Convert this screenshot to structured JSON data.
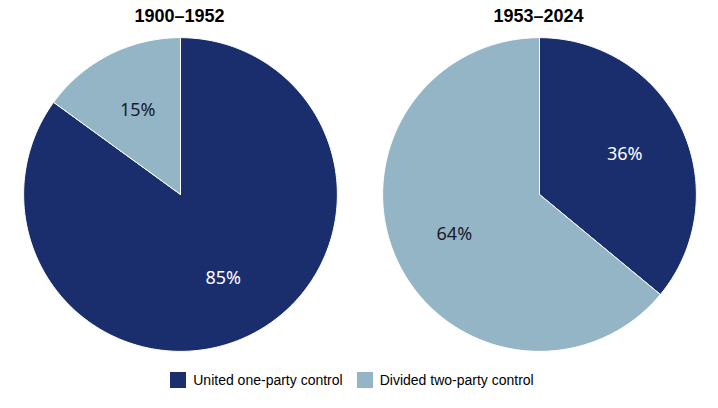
{
  "chart_data": [
    {
      "type": "pie",
      "title": "1900–1952",
      "categories": [
        "United one-party control",
        "Divided two-party control"
      ],
      "values": [
        85,
        15
      ],
      "value_labels": [
        "85%",
        "15%"
      ],
      "colors": [
        "#1a2e6e",
        "#93b5c6"
      ],
      "data_labels": true,
      "legend": "bottom"
    },
    {
      "type": "pie",
      "title": "1953–2024",
      "categories": [
        "United one-party control",
        "Divided two-party control"
      ],
      "values": [
        36,
        64
      ],
      "value_labels": [
        "36%",
        "64%"
      ],
      "colors": [
        "#1a2e6e",
        "#93b5c6"
      ],
      "data_labels": true,
      "legend": "bottom"
    }
  ]
}
